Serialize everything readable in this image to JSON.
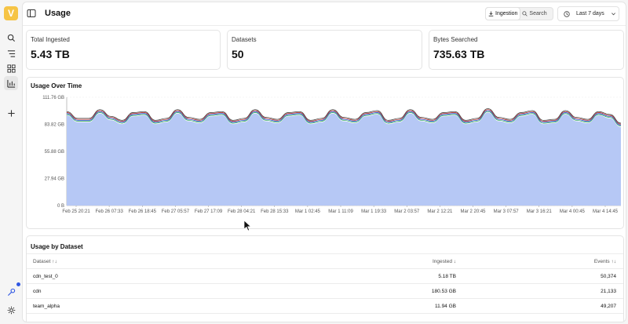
{
  "app": {
    "logo_letter": "V",
    "accent_color": "#f6c445",
    "sidebar": [
      {
        "name": "search-icon"
      },
      {
        "name": "filter-icon"
      },
      {
        "name": "dashboard-icon"
      },
      {
        "name": "usage-chart-icon",
        "active": true
      },
      {
        "name": "add-icon"
      },
      {
        "name": "key-icon",
        "badge": true
      },
      {
        "name": "settings-icon"
      }
    ]
  },
  "header": {
    "title": "Usage",
    "segment": {
      "ingestion_label": "Ingestion",
      "search_label": "Search",
      "active": "Ingestion"
    },
    "time_range": "Last 7 days"
  },
  "cards": [
    {
      "label": "Total Ingested",
      "value": "5.43 TB"
    },
    {
      "label": "Datasets",
      "value": "50"
    },
    {
      "label": "Bytes Searched",
      "value": "735.63 TB"
    }
  ],
  "chart_section": {
    "title": "Usage Over Time"
  },
  "chart_data": {
    "type": "area",
    "title": "Usage Over Time",
    "y_ticks": [
      "111.76 GB",
      "83.82 GB",
      "55.88 GB",
      "27.94 GB",
      "0 B"
    ],
    "ylim": [
      0,
      111.76
    ],
    "y_unit": "GB",
    "x_ticks": [
      "Feb 25 20:21",
      "Feb 26 07:33",
      "Feb 26 18:45",
      "Feb 27 05:57",
      "Feb 27 17:09",
      "Feb 28 04:21",
      "Feb 28 15:33",
      "Mar 1 02:45",
      "Mar 1 11:09",
      "Mar 1 19:33",
      "Mar 2 03:57",
      "Mar 2 12:21",
      "Mar 2 20:45",
      "Mar 3 07:57",
      "Mar 3 16:21",
      "Mar 4 00:45",
      "Mar 4 14:45"
    ],
    "grid": true,
    "series": [
      {
        "color": "#b6c8f5",
        "values": [
          93,
          86,
          86,
          95,
          88,
          84,
          92,
          93,
          84,
          86,
          95,
          87,
          85,
          92,
          93,
          84,
          86,
          95,
          87,
          85,
          92,
          93,
          84,
          86,
          95,
          87,
          85,
          92,
          94,
          84,
          86,
          95,
          87,
          85,
          92,
          93,
          84,
          86,
          96,
          87,
          85,
          92,
          94,
          84,
          85,
          94,
          87,
          85,
          93,
          90,
          81
        ]
      },
      {
        "color": "#3fae62",
        "values": [
          94,
          87,
          87,
          96,
          89,
          85,
          93,
          94,
          85,
          87,
          96,
          88,
          86,
          93,
          94,
          85,
          87,
          96,
          88,
          86,
          93,
          94,
          85,
          87,
          96,
          88,
          86,
          93,
          95,
          85,
          87,
          96,
          88,
          86,
          93,
          94,
          85,
          87,
          97,
          88,
          86,
          93,
          95,
          85,
          86,
          95,
          88,
          86,
          94,
          91,
          82
        ]
      },
      {
        "color": "#2f57e3",
        "values": [
          95,
          88,
          88,
          97,
          90,
          86,
          94,
          95,
          86,
          88,
          97,
          89,
          87,
          94,
          95,
          86,
          88,
          97,
          89,
          87,
          94,
          95,
          86,
          88,
          97,
          89,
          87,
          94,
          96,
          86,
          88,
          97,
          89,
          87,
          94,
          95,
          86,
          88,
          98,
          89,
          87,
          94,
          96,
          86,
          87,
          96,
          89,
          87,
          95,
          92,
          83
        ]
      },
      {
        "color": "#c0392b",
        "values": [
          96,
          89,
          89,
          98,
          91,
          87,
          95,
          96,
          87,
          89,
          98,
          90,
          88,
          95,
          96,
          87,
          89,
          98,
          90,
          88,
          95,
          96,
          87,
          89,
          98,
          90,
          88,
          95,
          97,
          87,
          89,
          98,
          90,
          88,
          95,
          96,
          87,
          89,
          99,
          90,
          88,
          95,
          97,
          87,
          88,
          97,
          90,
          88,
          96,
          93,
          84
        ]
      },
      {
        "color": "#444444",
        "values": [
          97,
          90,
          90,
          99,
          92,
          88,
          96,
          97,
          88,
          90,
          99,
          91,
          89,
          96,
          97,
          88,
          90,
          99,
          91,
          89,
          96,
          97,
          88,
          90,
          99,
          91,
          89,
          96,
          98,
          88,
          90,
          99,
          91,
          89,
          96,
          97,
          88,
          90,
          100,
          91,
          89,
          96,
          98,
          88,
          89,
          98,
          91,
          89,
          97,
          94,
          85
        ]
      }
    ]
  },
  "table": {
    "title": "Usage by Dataset",
    "columns": {
      "dataset": "Dataset ↑↓",
      "ingested": "Ingested ↓",
      "events": "Events ↑↓"
    },
    "rows": [
      {
        "dataset": "cdn_test_0",
        "ingested": "5.18 TB",
        "events": "50,374"
      },
      {
        "dataset": "cdn",
        "ingested": "180.53 GB",
        "events": "21,133"
      },
      {
        "dataset": "team_alpha",
        "ingested": "11.94 GB",
        "events": "49,207"
      }
    ]
  }
}
